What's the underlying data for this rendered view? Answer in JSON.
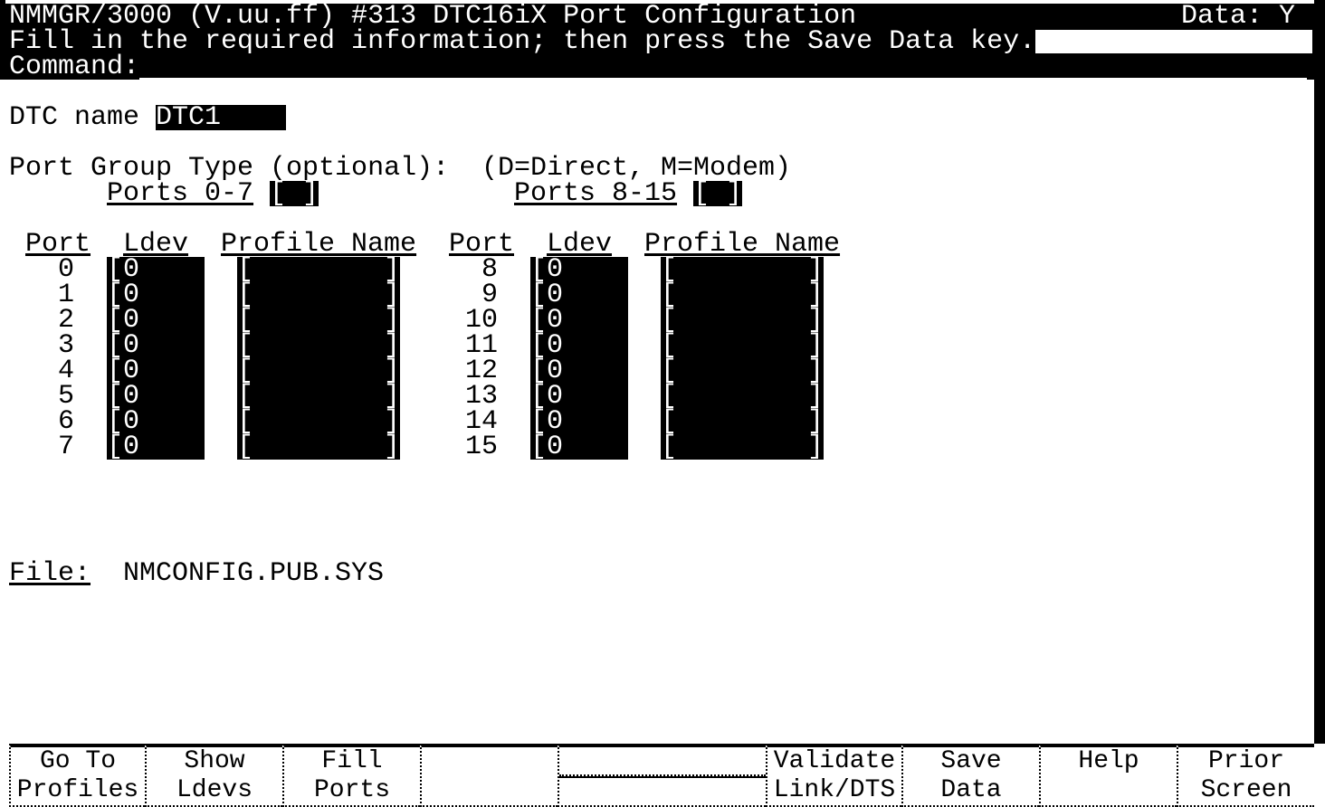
{
  "header": {
    "title": "NMMGR/3000 (V.uu.ff) #313 DTC16iX Port Configuration",
    "data_flag": "Data: Y",
    "message": "Fill in the required information; then press the Save Data key.",
    "command_label": "Command:",
    "command_value": ""
  },
  "dtc": {
    "label": "DTC name",
    "value": "DTC1    "
  },
  "port_group": {
    "label": "Port Group Type (optional):",
    "hint": "(D=Direct, M=Modem)",
    "group1_label": "Ports 0-7",
    "group1_value": "[ ]",
    "group2_label": "Ports 8-15",
    "group2_value": "[ ]"
  },
  "columns": {
    "port": "Port",
    "ldev": "Ldev",
    "profile": "Profile Name"
  },
  "ports": [
    {
      "port": "0",
      "ldev": "0",
      "profile": ""
    },
    {
      "port": "1",
      "ldev": "0",
      "profile": ""
    },
    {
      "port": "2",
      "ldev": "0",
      "profile": ""
    },
    {
      "port": "3",
      "ldev": "0",
      "profile": ""
    },
    {
      "port": "4",
      "ldev": "0",
      "profile": ""
    },
    {
      "port": "5",
      "ldev": "0",
      "profile": ""
    },
    {
      "port": "6",
      "ldev": "0",
      "profile": ""
    },
    {
      "port": "7",
      "ldev": "0",
      "profile": ""
    },
    {
      "port": "8",
      "ldev": "0",
      "profile": ""
    },
    {
      "port": "9",
      "ldev": "0",
      "profile": ""
    },
    {
      "port": "10",
      "ldev": "0",
      "profile": ""
    },
    {
      "port": "11",
      "ldev": "0",
      "profile": ""
    },
    {
      "port": "12",
      "ldev": "0",
      "profile": ""
    },
    {
      "port": "13",
      "ldev": "0",
      "profile": ""
    },
    {
      "port": "14",
      "ldev": "0",
      "profile": ""
    },
    {
      "port": "15",
      "ldev": "0",
      "profile": ""
    }
  ],
  "file": {
    "label": "File:",
    "value": "NMCONFIG.PUB.SYS"
  },
  "function_keys": [
    {
      "line1": "Go To",
      "line2": "Profiles"
    },
    {
      "line1": "Show",
      "line2": "Ldevs"
    },
    {
      "line1": "Fill",
      "line2": "Ports"
    },
    {
      "line1": "",
      "line2": ""
    },
    {
      "line1": "",
      "line2": ""
    },
    {
      "line1": "Validate",
      "line2": "Link/DTS"
    },
    {
      "line1": "Save",
      "line2": "Data"
    },
    {
      "line1": "Help",
      "line2": ""
    },
    {
      "line1": "Prior",
      "line2": "Screen"
    }
  ]
}
